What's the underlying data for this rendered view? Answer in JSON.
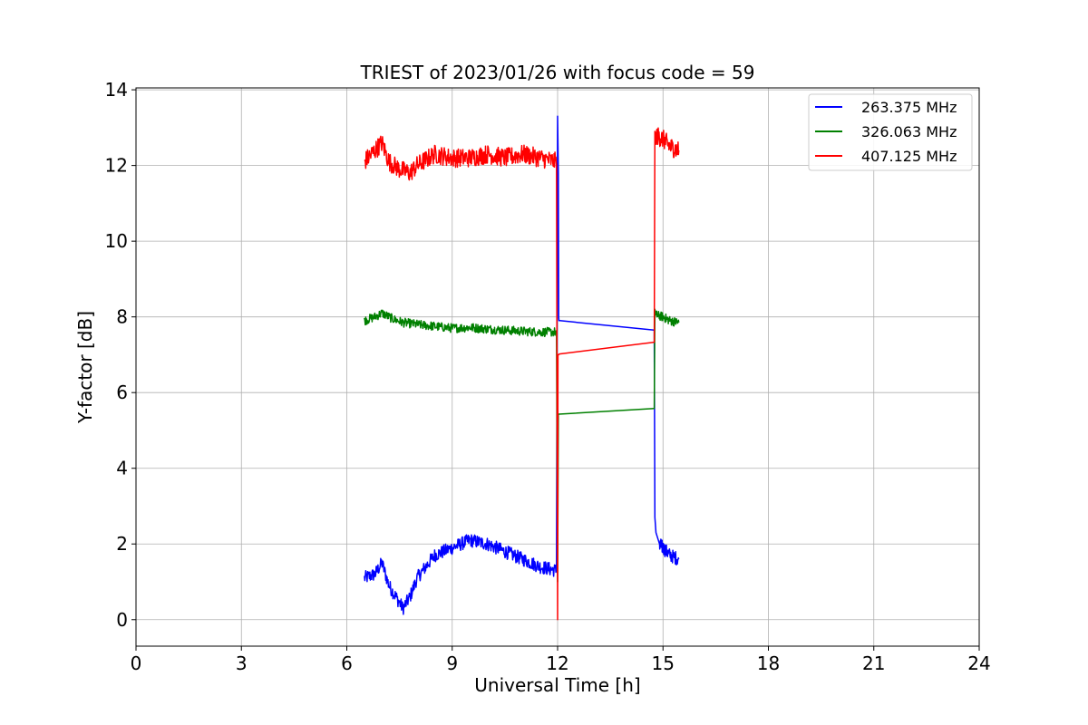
{
  "chart_data": {
    "type": "line",
    "title": "TRIEST of 2023/01/26 with focus code = 59",
    "xlabel": "Universal Time [h]",
    "ylabel": "Y-factor [dB]",
    "xlim": [
      0,
      24
    ],
    "ylim": [
      -0.7,
      14.05
    ],
    "xticks": [
      0,
      3,
      6,
      9,
      12,
      15,
      18,
      21,
      24
    ],
    "xtick_labels": [
      "0",
      "3",
      "6",
      "9",
      "12",
      "15",
      "18",
      "21",
      "24"
    ],
    "yticks": [
      0,
      2,
      4,
      6,
      8,
      10,
      12,
      14
    ],
    "ytick_labels": [
      "0",
      "2",
      "4",
      "6",
      "8",
      "10",
      "12",
      "14"
    ],
    "grid": true,
    "legend_position": "top-right",
    "series": [
      {
        "name": "263.375 MHz",
        "color": "#0000ff",
        "noise": 0.18,
        "segments": [
          {
            "x": [
              6.5,
              6.8,
              7.0,
              7.2,
              7.4,
              7.6,
              7.8,
              8.0,
              8.5,
              9.0,
              9.5,
              10.0,
              10.5,
              11.0,
              11.5,
              11.95
            ],
            "y": [
              1.1,
              1.2,
              1.5,
              0.9,
              0.6,
              0.3,
              0.6,
              1.1,
              1.7,
              1.9,
              2.1,
              2.0,
              1.8,
              1.6,
              1.4,
              1.3
            ]
          },
          {
            "x": [
              11.97,
              12.0,
              12.02,
              12.03,
              12.04,
              12.06,
              14.75,
              14.77,
              14.8,
              14.9,
              15.0,
              15.2,
              15.45
            ],
            "y": [
              1.3,
              13.3,
              11.8,
              8.0,
              7.9,
              7.9,
              7.65,
              2.7,
              2.3,
              2.0,
              1.9,
              1.7,
              1.6
            ]
          }
        ]
      },
      {
        "name": "326.063 MHz",
        "color": "#008000",
        "noise": 0.12,
        "segments": [
          {
            "x": [
              6.5,
              6.8,
              7.0,
              7.3,
              7.6,
              8.0,
              8.5,
              9.0,
              9.5,
              10.0,
              10.5,
              11.0,
              11.5,
              11.95
            ],
            "y": [
              7.9,
              8.0,
              8.1,
              7.95,
              7.85,
              7.8,
              7.75,
              7.7,
              7.72,
              7.68,
              7.65,
              7.62,
              7.6,
              7.6
            ]
          },
          {
            "x": [
              11.97,
              12.0,
              12.02,
              12.04,
              14.75,
              14.77,
              14.8,
              15.0,
              15.2,
              15.45
            ],
            "y": [
              7.6,
              1.0,
              5.43,
              5.43,
              5.58,
              8.2,
              8.05,
              8.0,
              7.9,
              7.85
            ]
          }
        ]
      },
      {
        "name": "407.125 MHz",
        "color": "#ff0000",
        "noise": 0.25,
        "segments": [
          {
            "x": [
              6.5,
              6.8,
              7.0,
              7.2,
              7.5,
              7.8,
              8.0,
              8.5,
              9.0,
              9.5,
              10.0,
              10.5,
              11.0,
              11.5,
              11.95
            ],
            "y": [
              12.1,
              12.4,
              12.6,
              12.1,
              11.9,
              11.8,
              12.0,
              12.3,
              12.2,
              12.2,
              12.3,
              12.2,
              12.3,
              12.2,
              12.1
            ]
          },
          {
            "x": [
              11.97,
              12.0,
              12.01,
              12.02,
              12.03,
              12.05,
              14.75,
              14.77,
              14.8,
              15.0,
              15.2,
              15.45
            ],
            "y": [
              12.0,
              0.0,
              7.0,
              7.0,
              7.0,
              7.02,
              7.33,
              12.9,
              12.8,
              12.7,
              12.5,
              12.4
            ]
          }
        ]
      }
    ]
  }
}
